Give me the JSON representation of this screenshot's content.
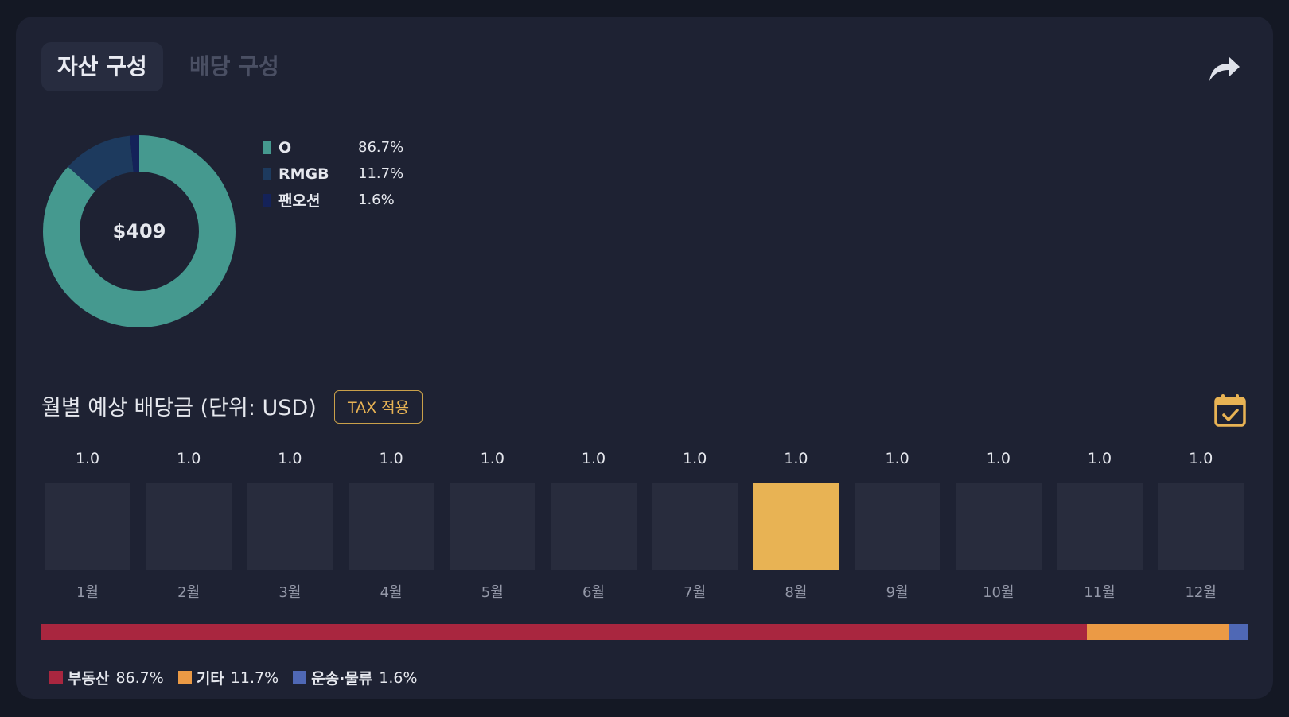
{
  "tabs": [
    {
      "label": "자산 구성",
      "active": true
    },
    {
      "label": "배당 구성",
      "active": false
    }
  ],
  "icons": {
    "share": "share-arrow-icon",
    "calendar": "calendar-check-icon"
  },
  "donut": {
    "center_label": "$409",
    "segments": [
      {
        "name": "O",
        "value": "86.7%",
        "fraction": 0.867,
        "color": "#45998f"
      },
      {
        "name": "RMGB",
        "value": "11.7%",
        "fraction": 0.117,
        "color": "#1d3a5e"
      },
      {
        "name": "팬오션",
        "value": "1.6%",
        "fraction": 0.016,
        "color": "#142259"
      }
    ]
  },
  "monthly": {
    "title": "월별 예상 배당금 (단위: USD)",
    "tax_button": "TAX 적용",
    "highlight_month_index": 7,
    "months": [
      {
        "label": "1월",
        "value": "1.0"
      },
      {
        "label": "2월",
        "value": "1.0"
      },
      {
        "label": "3월",
        "value": "1.0"
      },
      {
        "label": "4월",
        "value": "1.0"
      },
      {
        "label": "5월",
        "value": "1.0"
      },
      {
        "label": "6월",
        "value": "1.0"
      },
      {
        "label": "7월",
        "value": "1.0"
      },
      {
        "label": "8월",
        "value": "1.0"
      },
      {
        "label": "9월",
        "value": "1.0"
      },
      {
        "label": "10월",
        "value": "1.0"
      },
      {
        "label": "11월",
        "value": "1.0"
      },
      {
        "label": "12월",
        "value": "1.0"
      }
    ]
  },
  "sectors": [
    {
      "name": "부동산",
      "value": "86.7%",
      "fraction": 0.867,
      "color": "#a9263f"
    },
    {
      "name": "기타",
      "value": "11.7%",
      "fraction": 0.117,
      "color": "#eb9a45"
    },
    {
      "name": "운송·물류",
      "value": "1.6%",
      "fraction": 0.016,
      "color": "#4f68b5"
    }
  ],
  "colors": {
    "accent": "#e8b354",
    "card": "#1e2233",
    "bar": "#282c3d"
  }
}
